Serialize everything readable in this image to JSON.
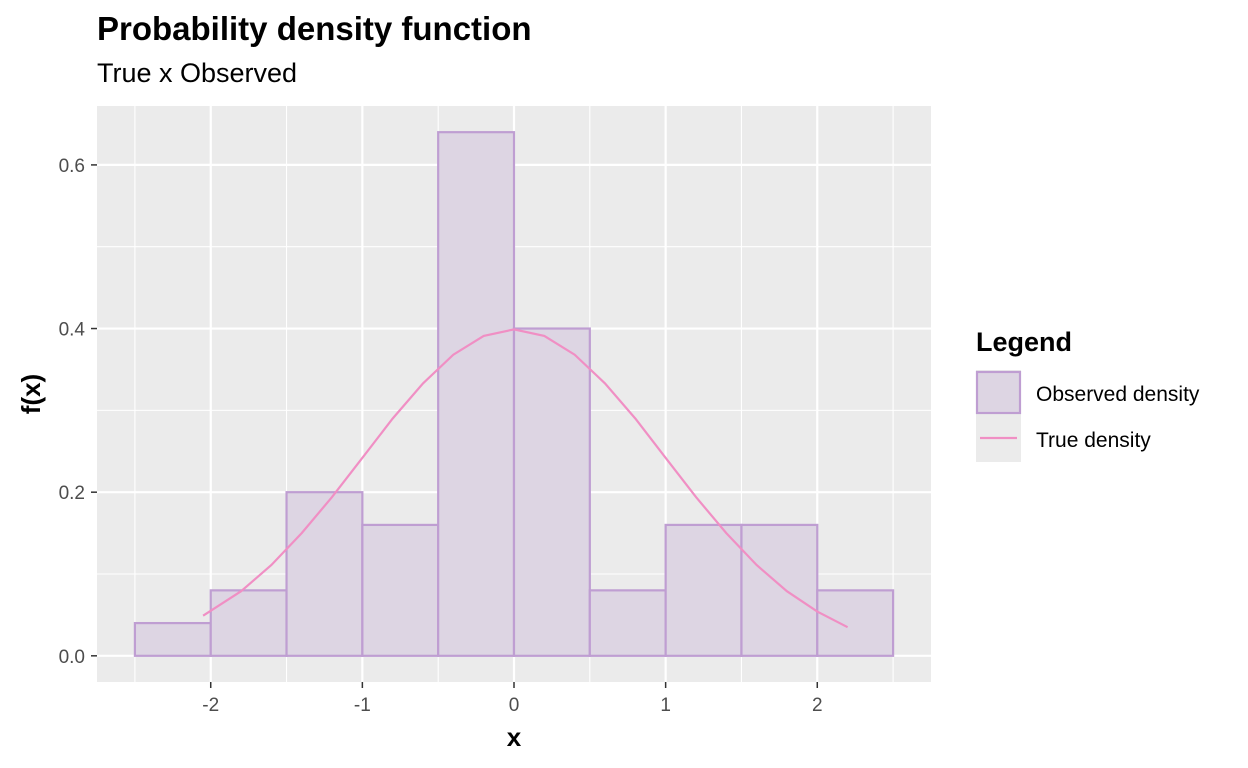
{
  "chart_data": {
    "type": "bar",
    "title": "Probability density function",
    "subtitle": "True x Observed",
    "xlabel": "x",
    "ylabel": "f(x)",
    "xlim": [
      -2.75,
      2.75
    ],
    "ylim": [
      -0.032,
      0.672
    ],
    "x_ticks": [
      -2,
      -1,
      0,
      1,
      2
    ],
    "x_tick_labels": [
      "-2",
      "-1",
      "0",
      "1",
      "2"
    ],
    "y_ticks": [
      0.0,
      0.2,
      0.4,
      0.6
    ],
    "y_tick_labels": [
      "0.0",
      "0.2",
      "0.4",
      "0.6"
    ],
    "grid": true,
    "legend_position": "right",
    "legend": {
      "title": "Legend",
      "entries": [
        {
          "label": "Observed density",
          "kind": "fill"
        },
        {
          "label": "True density",
          "kind": "line"
        }
      ]
    },
    "colors": {
      "panel_background": "#ebebeb",
      "grid": "#ffffff",
      "bar_fill": "#ddd5e3",
      "bar_stroke": "#bf9ed2",
      "line": "#f08fc4"
    },
    "series": [
      {
        "name": "Observed density",
        "type": "histogram",
        "bins": [
          {
            "x0": -2.5,
            "x1": -2.0,
            "value": 0.04
          },
          {
            "x0": -2.0,
            "x1": -1.5,
            "value": 0.08
          },
          {
            "x0": -1.5,
            "x1": -1.0,
            "value": 0.2
          },
          {
            "x0": -1.0,
            "x1": -0.5,
            "value": 0.16
          },
          {
            "x0": -0.5,
            "x1": 0.0,
            "value": 0.64
          },
          {
            "x0": 0.0,
            "x1": 0.5,
            "value": 0.4
          },
          {
            "x0": 0.5,
            "x1": 1.0,
            "value": 0.08
          },
          {
            "x0": 1.0,
            "x1": 1.5,
            "value": 0.16
          },
          {
            "x0": 1.5,
            "x1": 2.0,
            "value": 0.16
          },
          {
            "x0": 2.0,
            "x1": 2.5,
            "value": 0.08
          }
        ]
      },
      {
        "name": "True density",
        "type": "line",
        "x": [
          -2.05,
          -1.8,
          -1.6,
          -1.4,
          -1.2,
          -1.0,
          -0.8,
          -0.6,
          -0.4,
          -0.2,
          0.0,
          0.2,
          0.4,
          0.6,
          0.8,
          1.0,
          1.2,
          1.4,
          1.6,
          1.8,
          2.0,
          2.2
        ],
        "y": [
          0.049,
          0.079,
          0.111,
          0.15,
          0.194,
          0.242,
          0.29,
          0.333,
          0.368,
          0.391,
          0.399,
          0.391,
          0.368,
          0.333,
          0.29,
          0.242,
          0.194,
          0.15,
          0.111,
          0.079,
          0.054,
          0.035
        ]
      }
    ]
  }
}
